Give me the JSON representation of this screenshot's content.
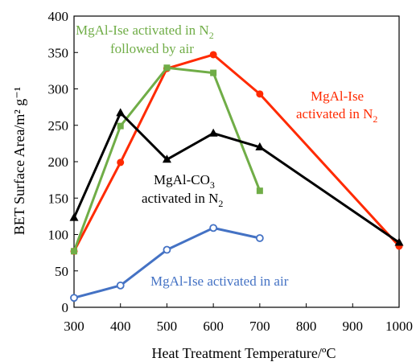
{
  "chart_data": {
    "type": "line",
    "title": "",
    "xlabel": "Heat Treatment Temperature/ºC",
    "ylabel": "BET Surface Area/m² g⁻¹",
    "xlim": [
      300,
      1000
    ],
    "ylim": [
      0,
      400
    ],
    "xticks": [
      300,
      400,
      500,
      600,
      700,
      800,
      900,
      1000
    ],
    "yticks": [
      0,
      50,
      100,
      150,
      200,
      250,
      300,
      350,
      400
    ],
    "grid": false,
    "legend": "none (inline annotations)",
    "series": [
      {
        "label": "MgAl-Ise activated in N₂",
        "color": "#ff2a00",
        "marker": "circle-filled",
        "x": [
          300,
          400,
          500,
          600,
          700,
          1000
        ],
        "y": [
          77,
          199,
          328,
          347,
          293,
          84
        ]
      },
      {
        "label": "MgAl-Ise activated in N₂ followed by air",
        "color": "#70ad47",
        "marker": "square-filled",
        "x": [
          300,
          400,
          500,
          600,
          700
        ],
        "y": [
          77,
          249,
          329,
          322,
          160
        ]
      },
      {
        "label": "MgAl-CO₃ activated in N₂",
        "color": "#000000",
        "marker": "triangle-filled",
        "x": [
          300,
          400,
          500,
          600,
          700,
          1000
        ],
        "y": [
          123,
          267,
          203,
          239,
          220,
          89
        ]
      },
      {
        "label": "MgAl-Ise activated in air",
        "color": "#4472c4",
        "marker": "circle-open",
        "x": [
          300,
          400,
          500,
          600,
          700
        ],
        "y": [
          13,
          30,
          79,
          109,
          95
        ]
      }
    ],
    "annotations": [
      {
        "lines": [
          "MgAl-Ise activated in N",
          "followed by air"
        ],
        "sub": "2",
        "color": "#70ad47"
      },
      {
        "lines": [
          "MgAl-Ise",
          "activated in N"
        ],
        "sub": "2",
        "color": "#ff2a00"
      },
      {
        "lines": [
          "MgAl-CO",
          "activated in N"
        ],
        "sub": "3",
        "sub2": "2",
        "color": "#000000"
      },
      {
        "lines": [
          "MgAl-Ise activated in air"
        ],
        "color": "#4472c4"
      }
    ]
  }
}
